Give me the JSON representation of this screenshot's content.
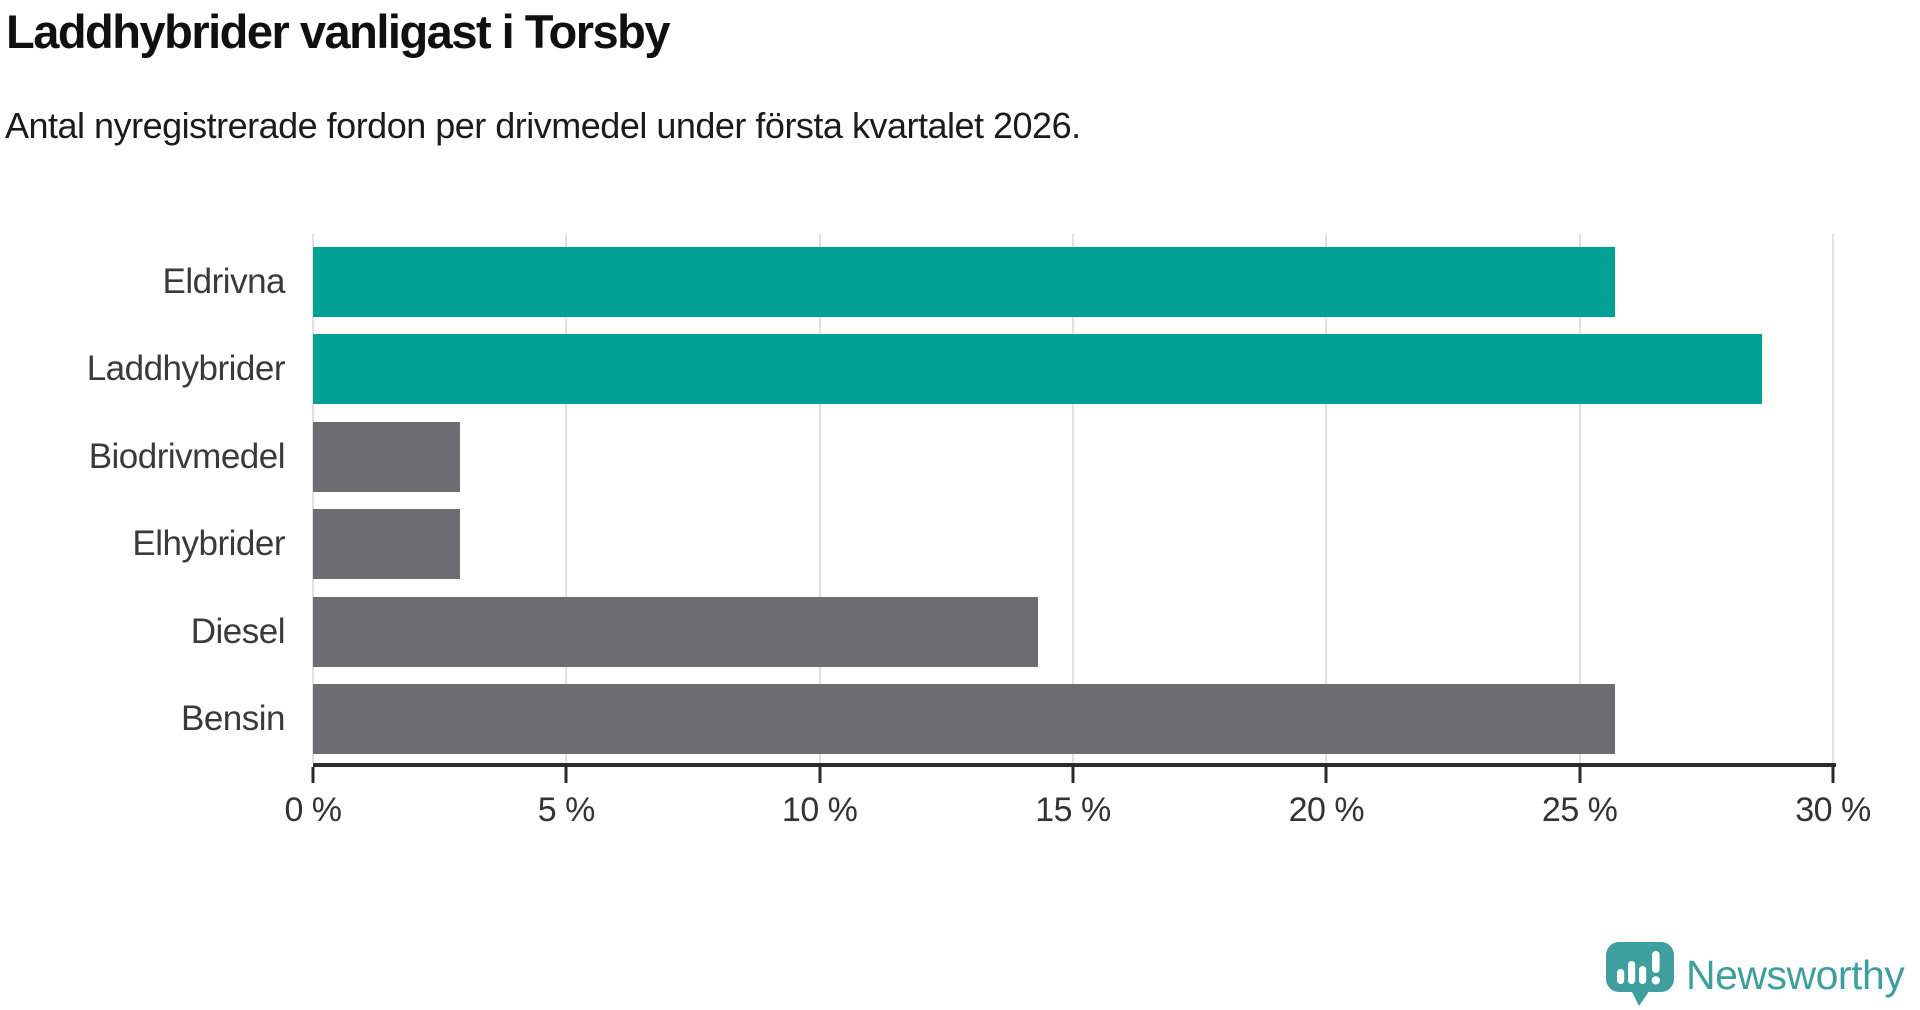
{
  "header": {
    "title": "Laddhybrider vanligast i Torsby",
    "subtitle": "Antal nyregistrerade fordon per drivmedel under första kvartalet 2026."
  },
  "chart_data": {
    "type": "bar",
    "orientation": "horizontal",
    "title": "Laddhybrider vanligast i Torsby",
    "subtitle": "Antal nyregistrerade fordon per drivmedel under första kvartalet 2026.",
    "categories": [
      "Eldrivna",
      "Laddhybrider",
      "Biodrivmedel",
      "Elhybrider",
      "Diesel",
      "Bensin"
    ],
    "values": [
      25.7,
      28.6,
      2.9,
      2.9,
      14.3,
      25.7
    ],
    "unit": "%",
    "xlim": [
      0,
      30
    ],
    "x_ticks": [
      0,
      5,
      10,
      15,
      20,
      25,
      30
    ],
    "x_tick_labels": [
      "0 %",
      "5 %",
      "10 %",
      "15 %",
      "20 %",
      "25 %",
      "30 %"
    ],
    "grid": true,
    "legend": false,
    "bar_colors": [
      "#00a094",
      "#00a094",
      "#6c6c72",
      "#6c6c72",
      "#6c6c72",
      "#6c6c72"
    ]
  },
  "colors": {
    "highlight_bar": "#00a094",
    "neutral_bar": "#6c6c72",
    "gridline": "#e1e1e1",
    "axis": "#2b2b2b",
    "tick_label": "#333333",
    "category_label": "#3a3a3a",
    "logo": "#3f9e9e"
  },
  "branding": {
    "name": "Newsworthy",
    "logo_icon": "speech-bubble-bar-chart-exclamation"
  }
}
